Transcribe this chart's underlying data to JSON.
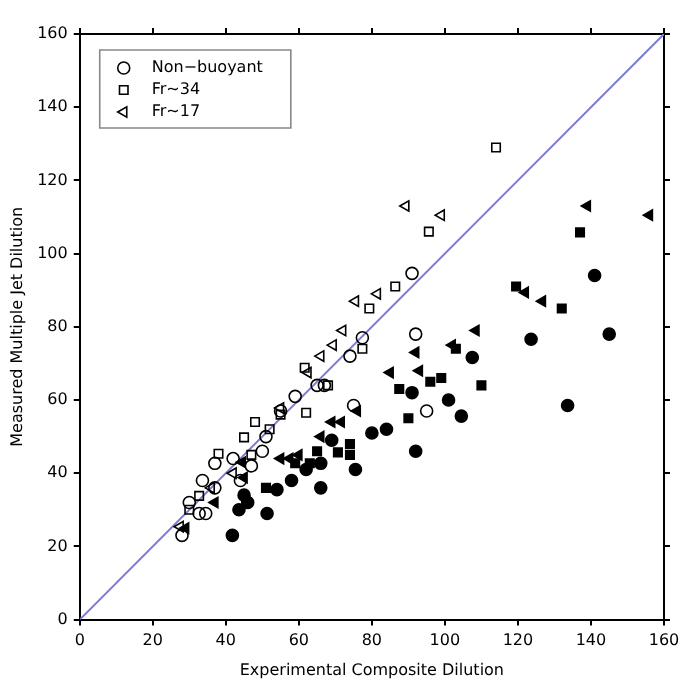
{
  "chart_data": {
    "type": "scatter",
    "xlabel": "Experimental Composite Dilution",
    "ylabel": "Measured Multiple Jet Dilution",
    "xlim": [
      0,
      160
    ],
    "ylim": [
      0,
      160
    ],
    "xticks": [
      0,
      20,
      40,
      60,
      80,
      100,
      120,
      140,
      160
    ],
    "yticks": [
      0,
      20,
      40,
      60,
      80,
      100,
      120,
      140,
      160
    ],
    "grid": false,
    "legend": "top left",
    "series": [
      {
        "name": "Non−buoyant",
        "color": "#000000",
        "marker": "circle",
        "x": [
          28,
          30,
          32.7,
          33.6,
          34.5,
          37,
          37,
          42,
          44,
          47,
          50,
          51,
          55,
          59,
          65,
          67,
          74,
          75,
          77.4,
          92,
          91,
          95
        ],
        "values": [
          23,
          32,
          29,
          38,
          29,
          42.7,
          36,
          44,
          38,
          42,
          46,
          50,
          57,
          61,
          64,
          64,
          72,
          58.5,
          77,
          78,
          94.6,
          57
        ]
      },
      {
        "name": "Fr~34",
        "color": "#000000",
        "marker": "square",
        "x": [
          30,
          32.7,
          38,
          45,
          47,
          48,
          52,
          55,
          61.6,
          62,
          68,
          77.4,
          79.3,
          86.4,
          95.6,
          114
        ],
        "values": [
          30,
          33.8,
          45.3,
          49.8,
          45,
          54,
          52,
          56,
          68.8,
          56.5,
          64,
          74,
          85,
          91,
          106,
          129
        ]
      },
      {
        "name": "Fr~17",
        "color": "#000000",
        "marker": "triangle",
        "x": [
          27.5,
          36,
          42,
          55,
          62.5,
          66,
          69.4,
          72,
          75.5,
          81.5,
          89.3,
          99
        ],
        "values": [
          25.4,
          36,
          40,
          57.8,
          67.5,
          72,
          75,
          79,
          87,
          89,
          113,
          110.5
        ]
      },
      {
        "color": "#000000",
        "marker": "circle",
        "x": [
          41.8,
          43.6,
          45,
          46,
          51.3,
          54,
          58,
          62,
          66,
          66,
          69,
          75.5,
          80,
          84,
          91,
          92,
          101,
          104.5,
          107.5,
          123.6,
          133.6,
          141,
          145
        ],
        "values": [
          23,
          30,
          34,
          32,
          29,
          35.5,
          38,
          41,
          42.7,
          36,
          49,
          41,
          51,
          52,
          62,
          46,
          60,
          55.6,
          71.6,
          76.6,
          58.5,
          94,
          78
        ]
      },
      {
        "color": "#000000",
        "marker": "square",
        "x": [
          51,
          59,
          63,
          65,
          70.7,
          74,
          74,
          87.5,
          90,
          96,
          99,
          103,
          110,
          119.5,
          132,
          137
        ],
        "values": [
          36,
          42.7,
          42.7,
          46,
          45.7,
          48,
          45,
          63,
          55,
          65,
          66,
          74,
          64,
          91,
          85,
          105.8
        ]
      },
      {
        "color": "#000000",
        "marker": "triangle",
        "x": [
          29,
          37,
          44.5,
          45,
          55,
          57.5,
          60,
          66,
          69,
          71.6,
          76,
          85,
          92,
          93,
          102,
          108.5,
          122,
          126.7,
          139,
          156
        ],
        "values": [
          25,
          32,
          43,
          38.8,
          44,
          44,
          45,
          50,
          54,
          54,
          57,
          67.5,
          73,
          68,
          75,
          79,
          89.4,
          87,
          113,
          110.5
        ]
      },
      {
        "type": "line",
        "color": "#7b7bd6",
        "marker": "none",
        "x": [
          0,
          160
        ],
        "values": [
          0,
          160
        ]
      }
    ]
  }
}
